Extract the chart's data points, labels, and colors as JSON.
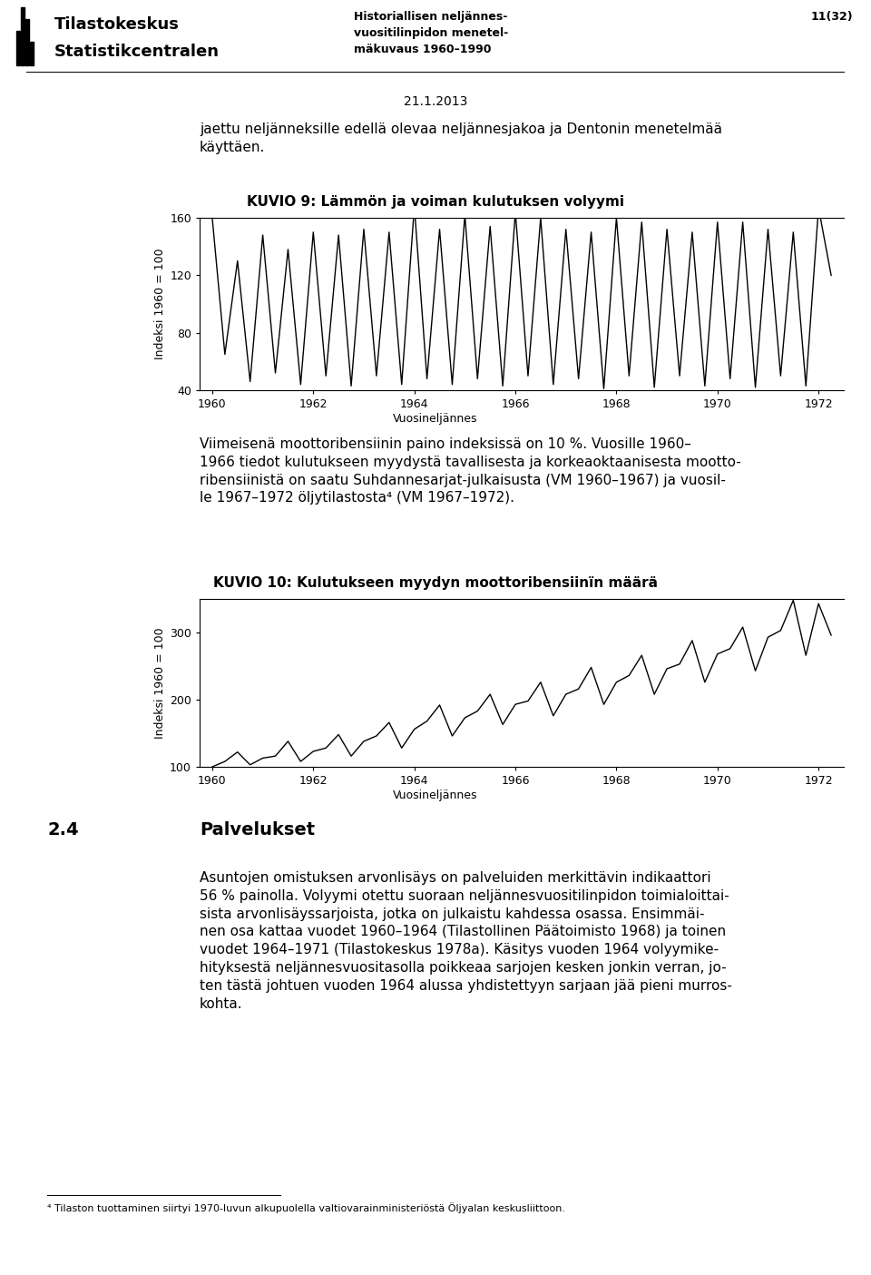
{
  "header_left_line1": "Tilastokeskus",
  "header_left_line2": "Statistikcentralen",
  "header_center_line1": "Historiallisen neljännes-",
  "header_center_line2": "vuositilinpidon menetel-",
  "header_center_line3": "mäkuvaus 1960–1990",
  "header_right": "11(32)",
  "date_text": "21.1.2013",
  "intro_text": "jaettu neljänneksille edellä olevaa neljännesjakoa ja Dentonin menetelmää\nkäyttäen.",
  "chart1_title": "KUVIO 9: Lämmön ja voiman kulutuksen volyymi",
  "chart1_ylabel": "Indeksi 1960 = 100",
  "chart1_xlabel": "Vuosineljännes",
  "chart1_ylim": [
    40,
    160
  ],
  "chart1_yticks": [
    40,
    80,
    120,
    160
  ],
  "chart1_xlim": [
    1959.75,
    1972.5
  ],
  "chart1_xticks": [
    1960,
    1962,
    1964,
    1966,
    1968,
    1970,
    1972
  ],
  "chart2_title": "KUVIO 10: Kulutukseen myydyn moottoribensiinïn määrä",
  "chart2_ylabel": "Indeksi 1960 = 100",
  "chart2_xlabel": "Vuosineljännes",
  "chart2_ylim": [
    100,
    350
  ],
  "chart2_yticks": [
    100,
    200,
    300
  ],
  "chart2_xlim": [
    1959.75,
    1972.5
  ],
  "chart2_xticks": [
    1960,
    1962,
    1964,
    1966,
    1968,
    1970,
    1972
  ],
  "middle_text": "Viimeisenä moottoribensiinin paino indeksissä on 10 %. Vuosille 1960–\n1966 tiedot kulutukseen myydystä tavallisesta ja korkeaoktaanisesta mootto-\nribensiinistä on saatu Suhdannesarjat-julkaisusta (VM 1960–1967) ja vuosil-\nle 1967–1972 öljytilastosta⁴ (VM 1967–1972).",
  "section_number": "2.4",
  "section_title": "Palvelukset",
  "body_text_lines": [
    "Asuntojen omistuksen arvonlisäys on palveluiden merkittävin indikaattori",
    "56 % painolla. Volyymi otettu suoraan neljännesvuositilinpidon toimialoittai-",
    "sista arvonlisäyssarjoista, jotka on julkaistu kahdessa osassa. Ensimmäi-",
    "nen osa kattaa vuodet 1960–1964 (Tilastollinen Päätoimisto 1968) ja toinen",
    "vuodet 1964–1971 (Tilastokeskus 1978a). Käsitys vuoden 1964 volyymike-",
    "hityksestä neljännesvuositasolla poikkeaa sarjojen kesken jonkin verran, jo-",
    "ten tästä johtuen vuoden 1964 alussa yhdistettyyn sarjaan jää pieni murros-",
    "kohta."
  ],
  "footnote": "⁴ Tilaston tuottaminen siirtyi 1970-luvun alkupuolella valtiovarainministeriöstä Öljyalan keskusliittoon.",
  "line_color": "#000000",
  "bg_color": "#ffffff",
  "chart1_data_x": [
    1960.0,
    1960.25,
    1960.5,
    1960.75,
    1961.0,
    1961.25,
    1961.5,
    1961.75,
    1962.0,
    1962.25,
    1962.5,
    1962.75,
    1963.0,
    1963.25,
    1963.5,
    1963.75,
    1964.0,
    1964.25,
    1964.5,
    1964.75,
    1965.0,
    1965.25,
    1965.5,
    1965.75,
    1966.0,
    1966.25,
    1966.5,
    1966.75,
    1967.0,
    1967.25,
    1967.5,
    1967.75,
    1968.0,
    1968.25,
    1968.5,
    1968.75,
    1969.0,
    1969.25,
    1969.5,
    1969.75,
    1970.0,
    1970.25,
    1970.5,
    1970.75,
    1971.0,
    1971.25,
    1971.5,
    1971.75,
    1972.0,
    1972.25
  ],
  "chart1_data_y": [
    160,
    65,
    130,
    46,
    148,
    52,
    138,
    44,
    150,
    50,
    148,
    43,
    152,
    50,
    150,
    44,
    168,
    48,
    152,
    44,
    162,
    48,
    154,
    43,
    164,
    50,
    160,
    44,
    152,
    48,
    150,
    41,
    160,
    50,
    157,
    42,
    152,
    50,
    150,
    43,
    157,
    48,
    157,
    42,
    152,
    50,
    150,
    43,
    167,
    120
  ],
  "chart2_data_x": [
    1960.0,
    1960.25,
    1960.5,
    1960.75,
    1961.0,
    1961.25,
    1961.5,
    1961.75,
    1962.0,
    1962.25,
    1962.5,
    1962.75,
    1963.0,
    1963.25,
    1963.5,
    1963.75,
    1964.0,
    1964.25,
    1964.5,
    1964.75,
    1965.0,
    1965.25,
    1965.5,
    1965.75,
    1966.0,
    1966.25,
    1966.5,
    1966.75,
    1967.0,
    1967.25,
    1967.5,
    1967.75,
    1968.0,
    1968.25,
    1968.5,
    1968.75,
    1969.0,
    1969.25,
    1969.5,
    1969.75,
    1970.0,
    1970.25,
    1970.5,
    1970.75,
    1971.0,
    1971.25,
    1971.5,
    1971.75,
    1972.0,
    1972.25
  ],
  "chart2_data_y": [
    100,
    108,
    122,
    103,
    113,
    116,
    138,
    108,
    123,
    128,
    148,
    116,
    138,
    146,
    166,
    128,
    156,
    168,
    192,
    146,
    173,
    183,
    208,
    163,
    193,
    198,
    226,
    176,
    208,
    216,
    248,
    193,
    226,
    236,
    266,
    208,
    246,
    253,
    288,
    226,
    268,
    276,
    308,
    243,
    293,
    303,
    348,
    266,
    343,
    296
  ]
}
